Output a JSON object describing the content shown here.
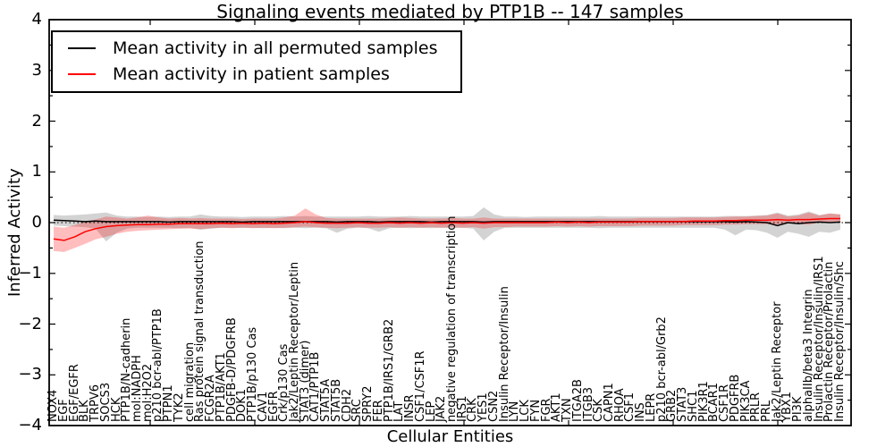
{
  "chart_data": {
    "type": "line",
    "title": "Signaling events mediated by PTP1B -- 147 samples",
    "xlabel": "Cellular Entities",
    "ylabel": "Inferred Activity",
    "ylim": [
      -4,
      4
    ],
    "ytick_values": [
      4,
      3,
      2,
      1,
      0,
      -1,
      -2,
      -3,
      -4
    ],
    "ytick_labels": [
      "4",
      "3",
      "2",
      "1",
      "0",
      "−1",
      "−2",
      "−3",
      "−4"
    ],
    "zero_line": true,
    "grid": false,
    "legend_position": "upper left",
    "categories": [
      "NOX4",
      "EGF",
      "EGF/EGFR",
      "BLK",
      "TRPV6",
      "SOCS3",
      "HCK",
      "PTP1B/N-cadherin",
      "mol:NADPH",
      "mol:H2O2",
      "p210 bcr-abl/PTP1B",
      "PTPN1",
      "TYK2",
      "cell migration",
      "Ras protein signal transduction",
      "FCGR2A",
      "PTP1B/AKT1",
      "PDGFB-D/PDGFRB",
      "DOK1",
      "PTP1B/p130 Cas",
      "CAV1",
      "EGFR",
      "Crk/p130 Cas",
      "Jak2/Leptin Receptor/Leptin",
      "STAT3 (dimer)",
      "CAT1/PTP1B",
      "STAT5A",
      "STAT5B",
      "CDH2",
      "SRC",
      "SPRY2",
      "FER",
      "PTP1B/IRS1/GRB2",
      "LAT",
      "INSR",
      "CSF1/CSF1R",
      "LEP",
      "JAK2",
      "negative regulation of transcription",
      "IRS1",
      "CRK",
      "YES1",
      "CSN2",
      "Insulin Receptor/Insulin",
      "LYN",
      "LCK",
      "FYN",
      "FGR",
      "AKT1",
      "TXN",
      "ITGA2B",
      "ITGB3",
      "CSK",
      "CAPN1",
      "RHOA",
      "CSF1",
      "INS",
      "LEPR",
      "p210 bcr-abl/Grb2",
      "GRB2",
      "STAT3",
      "SHC1",
      "PIK3R1",
      "BCAR1",
      "CSF1R",
      "PDGFRB",
      "PIK3CA",
      "PRLR",
      "PRL",
      "Jak2/Leptin Receptor",
      "YBX1",
      "PI3K",
      "alphaIIb/beta3 Integrin",
      "Insulin Receptor/Insulin/IRS1",
      "Prolactin Receptor/Prolactin",
      "Insulin Receptor/Insulin/Shc"
    ],
    "series": [
      {
        "key": "permuted",
        "name": "Mean activity in all permuted samples",
        "color": "#000000",
        "band_color": "rgba(128,128,128,0.35)",
        "values": [
          0.05,
          0.04,
          0.03,
          0.02,
          0.03,
          0.02,
          0.02,
          0.02,
          0.02,
          0.02,
          0.02,
          0.01,
          0.02,
          0.02,
          0.02,
          0.02,
          0.02,
          0.02,
          0.01,
          0.02,
          0.02,
          0.02,
          0.02,
          0.02,
          0.02,
          0.02,
          0.02,
          0.01,
          0.02,
          0.02,
          0.02,
          0.01,
          0.02,
          0.02,
          0.02,
          0.02,
          0.01,
          0.02,
          0.02,
          0.02,
          0.02,
          0.01,
          0.02,
          0.02,
          0.02,
          0.02,
          0.02,
          0.02,
          0.02,
          0.02,
          0.02,
          0.02,
          0.02,
          0.02,
          0.02,
          0.02,
          0.02,
          0.02,
          0.02,
          0.02,
          0.02,
          0.02,
          0.02,
          0.02,
          0.02,
          0.01,
          0.02,
          0.01,
          0.0,
          -0.06,
          0.0,
          -0.02,
          0.0,
          0.01,
          0.0,
          0.01
        ],
        "band_upper": [
          0.15,
          0.14,
          0.15,
          0.16,
          0.18,
          0.2,
          0.14,
          0.12,
          0.12,
          0.11,
          0.12,
          0.11,
          0.12,
          0.12,
          0.16,
          0.13,
          0.12,
          0.12,
          0.11,
          0.12,
          0.12,
          0.12,
          0.13,
          0.12,
          0.13,
          0.12,
          0.12,
          0.12,
          0.12,
          0.12,
          0.13,
          0.12,
          0.12,
          0.12,
          0.13,
          0.12,
          0.12,
          0.12,
          0.12,
          0.12,
          0.13,
          0.3,
          0.16,
          0.12,
          0.12,
          0.11,
          0.12,
          0.12,
          0.12,
          0.12,
          0.12,
          0.12,
          0.13,
          0.12,
          0.12,
          0.12,
          0.12,
          0.12,
          0.12,
          0.12,
          0.12,
          0.12,
          0.12,
          0.12,
          0.13,
          0.13,
          0.13,
          0.14,
          0.15,
          0.2,
          0.14,
          0.16,
          0.22,
          0.15,
          0.18,
          0.16
        ],
        "band_lower": [
          -0.06,
          -0.07,
          -0.08,
          -0.09,
          -0.12,
          -0.37,
          -0.2,
          -0.12,
          -0.1,
          -0.1,
          -0.1,
          -0.1,
          -0.11,
          -0.1,
          -0.14,
          -0.12,
          -0.1,
          -0.1,
          -0.1,
          -0.1,
          -0.11,
          -0.1,
          -0.11,
          -0.1,
          -0.11,
          -0.1,
          -0.11,
          -0.2,
          -0.12,
          -0.1,
          -0.11,
          -0.18,
          -0.11,
          -0.1,
          -0.11,
          -0.1,
          -0.11,
          -0.1,
          -0.11,
          -0.1,
          -0.12,
          -0.35,
          -0.18,
          -0.1,
          -0.1,
          -0.1,
          -0.1,
          -0.1,
          -0.1,
          -0.1,
          -0.1,
          -0.1,
          -0.11,
          -0.1,
          -0.1,
          -0.1,
          -0.1,
          -0.1,
          -0.1,
          -0.1,
          -0.1,
          -0.1,
          -0.1,
          -0.1,
          -0.14,
          -0.25,
          -0.14,
          -0.15,
          -0.2,
          -0.3,
          -0.18,
          -0.22,
          -0.28,
          -0.18,
          -0.2,
          -0.14
        ]
      },
      {
        "key": "patient",
        "name": "Mean activity in patient samples",
        "color": "#ff0000",
        "band_color": "rgba(255,0,0,0.26)",
        "values": [
          -0.32,
          -0.35,
          -0.28,
          -0.18,
          -0.12,
          -0.08,
          -0.06,
          -0.05,
          -0.04,
          -0.04,
          -0.03,
          -0.03,
          -0.02,
          -0.02,
          -0.02,
          -0.02,
          -0.01,
          -0.02,
          -0.01,
          -0.02,
          -0.01,
          -0.02,
          -0.01,
          0.0,
          0.02,
          0.0,
          -0.01,
          -0.01,
          -0.01,
          0.0,
          -0.01,
          -0.01,
          0.0,
          -0.01,
          0.0,
          -0.01,
          0.0,
          -0.01,
          0.0,
          -0.01,
          0.0,
          -0.01,
          0.0,
          0.0,
          0.0,
          0.0,
          0.0,
          0.0,
          0.01,
          0.0,
          0.01,
          0.0,
          0.01,
          0.01,
          0.01,
          0.01,
          0.02,
          0.02,
          0.02,
          0.02,
          0.02,
          0.03,
          0.03,
          0.03,
          0.04,
          0.04,
          0.05,
          0.05,
          0.05,
          0.06,
          0.05,
          0.06,
          0.06,
          0.07,
          0.08,
          0.08
        ],
        "band_upper": [
          -0.08,
          -0.1,
          -0.05,
          0.02,
          0.06,
          0.12,
          0.1,
          0.08,
          0.1,
          0.14,
          0.1,
          0.08,
          0.09,
          0.08,
          0.09,
          0.08,
          0.08,
          0.08,
          0.07,
          0.08,
          0.08,
          0.08,
          0.1,
          0.14,
          0.28,
          0.16,
          0.09,
          0.08,
          0.08,
          0.08,
          0.08,
          0.08,
          0.09,
          0.1,
          0.09,
          0.08,
          0.08,
          0.08,
          0.09,
          0.08,
          0.08,
          0.1,
          0.08,
          0.08,
          0.08,
          0.08,
          0.08,
          0.08,
          0.08,
          0.08,
          0.08,
          0.08,
          0.08,
          0.08,
          0.08,
          0.08,
          0.09,
          0.09,
          0.09,
          0.09,
          0.1,
          0.1,
          0.1,
          0.1,
          0.11,
          0.12,
          0.12,
          0.13,
          0.14,
          0.18,
          0.12,
          0.14,
          0.2,
          0.14,
          0.18,
          0.16
        ],
        "band_lower": [
          -0.56,
          -0.58,
          -0.5,
          -0.42,
          -0.33,
          -0.28,
          -0.22,
          -0.18,
          -0.16,
          -0.15,
          -0.14,
          -0.13,
          -0.12,
          -0.12,
          -0.13,
          -0.11,
          -0.1,
          -0.11,
          -0.1,
          -0.11,
          -0.1,
          -0.11,
          -0.1,
          -0.09,
          -0.08,
          -0.09,
          -0.1,
          -0.11,
          -0.1,
          -0.09,
          -0.1,
          -0.1,
          -0.09,
          -0.1,
          -0.09,
          -0.1,
          -0.09,
          -0.1,
          -0.09,
          -0.1,
          -0.09,
          -0.12,
          -0.09,
          -0.09,
          -0.08,
          -0.08,
          -0.08,
          -0.08,
          -0.07,
          -0.08,
          -0.07,
          -0.08,
          -0.07,
          -0.07,
          -0.07,
          -0.07,
          -0.06,
          -0.06,
          -0.06,
          -0.06,
          -0.05,
          -0.05,
          -0.05,
          -0.05,
          -0.04,
          -0.04,
          -0.03,
          -0.03,
          -0.03,
          -0.04,
          -0.02,
          -0.03,
          -0.04,
          0.0,
          0.01,
          0.02
        ]
      }
    ]
  }
}
